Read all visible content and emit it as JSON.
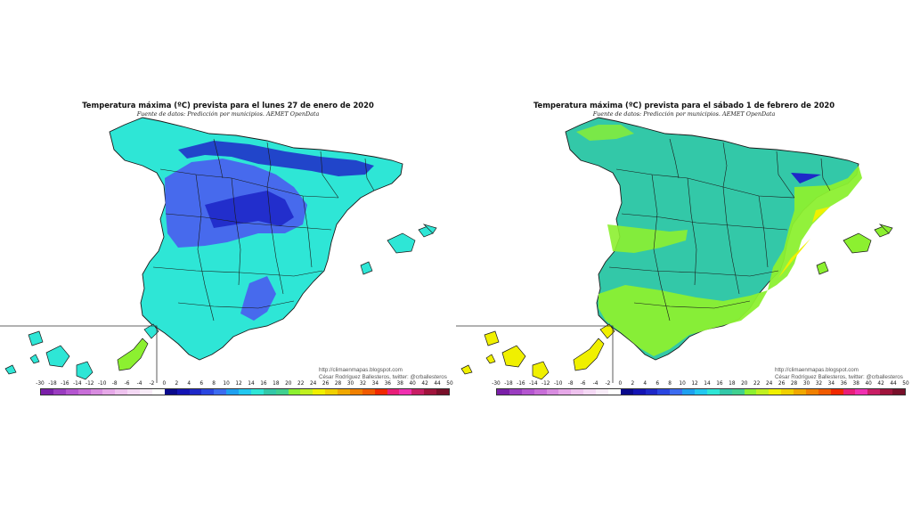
{
  "maps": [
    {
      "title": "Temperatura máxima (ºC) prevista para el lunes 27 de enero de 2020",
      "subtitle": "Fuente de datos: Predicción por municipios. AEMET OpenData",
      "credit_line1": "http://climaenmapas.blogspot.com",
      "credit_line2": "César Rodríguez Ballesteros, twitter: @crballesteros",
      "base_color": "#2ee6d6",
      "cold_color": "#4a5cf0",
      "colder_color": "#1e28c8",
      "warm_color": "#8cf030",
      "warmer_color": "#f0f000"
    },
    {
      "title": "Temperatura máxima (ºC) prevista para el sábado 1 de febrero de 2020",
      "subtitle": "Fuente de datos: Predicción por municipios. AEMET OpenData",
      "credit_line1": "http://climaenmapas.blogspot.com",
      "credit_line2": "César Rodríguez Ballesteros, twitter: @crballesteros",
      "base_color": "#33c8a8",
      "cold_color": "#2a6ee8",
      "colder_color": "#1e28c8",
      "warm_color": "#8cf030",
      "warmer_color": "#f0f000"
    }
  ],
  "colorbar": {
    "ticks": [
      "-30",
      "-18",
      "-16",
      "-14",
      "-12",
      "-10",
      "-8",
      "-6",
      "-4",
      "-2",
      "0",
      "2",
      "4",
      "6",
      "8",
      "10",
      "12",
      "14",
      "16",
      "18",
      "20",
      "22",
      "24",
      "26",
      "28",
      "30",
      "32",
      "34",
      "36",
      "38",
      "40",
      "42",
      "44",
      "50"
    ],
    "colors": [
      "#7a1fa8",
      "#9a3cc0",
      "#b455d0",
      "#c86ed8",
      "#d88ce0",
      "#e6a8e8",
      "#eec2ee",
      "#f4d8f4",
      "#f8ecf8",
      "#ffffff",
      "#0a0a8c",
      "#1414b4",
      "#1e28c8",
      "#2a46e0",
      "#3c6cf0",
      "#1ea0f0",
      "#22c8f0",
      "#2ee6d6",
      "#33c8a8",
      "#40d090",
      "#8cf030",
      "#c0f020",
      "#f0f000",
      "#f0d000",
      "#f0a800",
      "#f08000",
      "#f05a00",
      "#f02800",
      "#e81e78",
      "#f030b0",
      "#c81e64",
      "#a0143c",
      "#78102a"
    ]
  }
}
